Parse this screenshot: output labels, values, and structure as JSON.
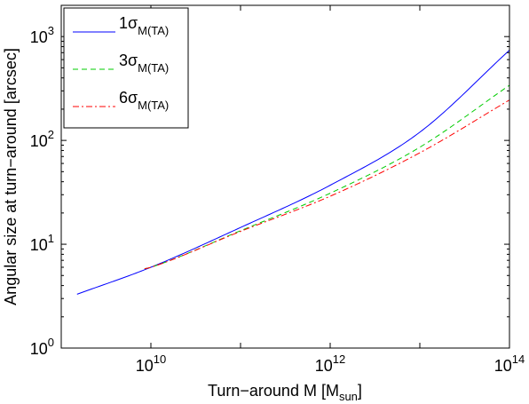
{
  "chart_data": {
    "type": "line",
    "title": "",
    "xlabel": {
      "main": "Turn−around M [M",
      "sub": "sun",
      "close": "]"
    },
    "ylabel": "Angular size at turn−around [arcsec]",
    "xscale": "log",
    "yscale": "log",
    "xlim": [
      1000000000.0,
      100000000000000.0
    ],
    "ylim": [
      1,
      2000
    ],
    "grid": false,
    "legend_position": "top-left",
    "x_ticks": [
      {
        "value": 10000000000.0,
        "base": "10",
        "exp": "10"
      },
      {
        "value": 1000000000000.0,
        "base": "10",
        "exp": "12"
      },
      {
        "value": 100000000000000.0,
        "base": "10",
        "exp": "14"
      }
    ],
    "y_ticks": [
      {
        "value": 1,
        "base": "10",
        "exp": "0"
      },
      {
        "value": 10,
        "base": "10",
        "exp": "1"
      },
      {
        "value": 100,
        "base": "10",
        "exp": "2"
      },
      {
        "value": 1000,
        "base": "10",
        "exp": "3"
      }
    ],
    "series": [
      {
        "name": "1σ",
        "name_sub": "M(TA)",
        "color": "#0000ff",
        "dash": "solid",
        "x": [
          1500000000.0,
          10000000000.0,
          100000000000.0,
          1000000000000.0,
          10000000000000.0,
          100000000000000.0
        ],
        "y": [
          3.3,
          6.0,
          14.5,
          37,
          120,
          740
        ]
      },
      {
        "name": "3σ",
        "name_sub": "M(TA)",
        "color": "#00cc00",
        "dash": "dashed",
        "x": [
          8500000000.0,
          10000000000.0,
          100000000000.0,
          1000000000000.0,
          10000000000000.0,
          100000000000000.0
        ],
        "y": [
          5.8,
          6.0,
          13.5,
          31,
          86,
          340
        ]
      },
      {
        "name": "6σ",
        "name_sub": "M(TA)",
        "color": "#ff0000",
        "dash": "dashdot",
        "x": [
          8500000000.0,
          10000000000.0,
          100000000000.0,
          1000000000000.0,
          10000000000000.0,
          100000000000000.0
        ],
        "y": [
          5.8,
          6.0,
          13.3,
          29,
          76,
          245
        ]
      }
    ]
  }
}
